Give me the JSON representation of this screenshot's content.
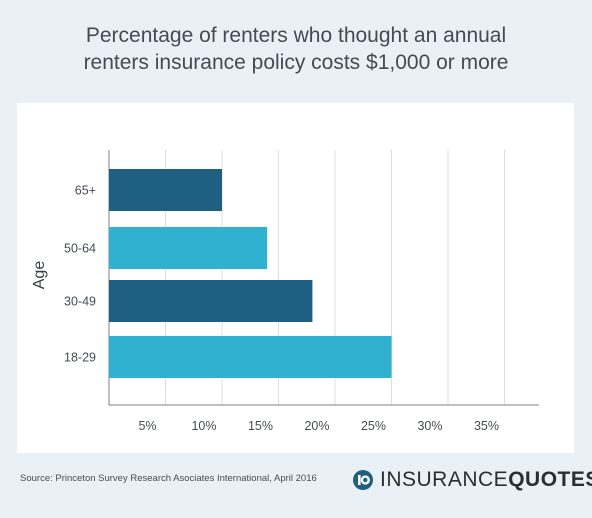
{
  "title_line1": "Percentage of renters who thought an annual",
  "title_line2": "renters insurance policy costs $1,000 or more",
  "source": "Source: Princeton Survey Research Asociates International, April 2016",
  "logo": {
    "part1": "INSURANCE",
    "part2": "QUOTES"
  },
  "colors": {
    "dark": "#1e5f82",
    "light": "#30b1cf",
    "background": "#e9f1f6"
  },
  "chart_data": {
    "type": "bar",
    "orientation": "horizontal",
    "categories": [
      "65+",
      "50-64",
      "30-49",
      "18-29"
    ],
    "values": [
      10,
      14,
      18,
      25
    ],
    "ylabel": "Age",
    "xlim": [
      0,
      37.5
    ],
    "xticks": [
      "5%",
      "10%",
      "15%",
      "20%",
      "25%",
      "30%",
      "35%"
    ],
    "grid": true
  }
}
